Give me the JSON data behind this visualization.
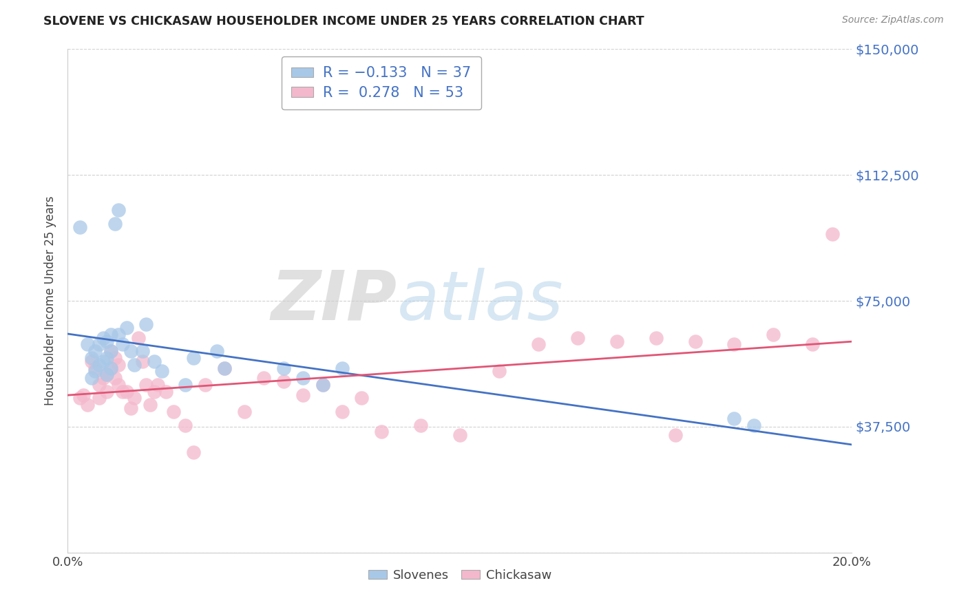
{
  "title": "SLOVENE VS CHICKASAW HOUSEHOLDER INCOME UNDER 25 YEARS CORRELATION CHART",
  "source": "Source: ZipAtlas.com",
  "ylabel": "Householder Income Under 25 years",
  "xlim": [
    0.0,
    0.2
  ],
  "ylim": [
    0,
    150000
  ],
  "yticks": [
    0,
    37500,
    75000,
    112500,
    150000
  ],
  "ytick_labels": [
    "",
    "$37,500",
    "$75,000",
    "$112,500",
    "$150,000"
  ],
  "legend_slovene_r": "-0.133",
  "legend_slovene_n": "37",
  "legend_chickasaw_r": "0.278",
  "legend_chickasaw_n": "53",
  "legend_label_slovene": "Slovenes",
  "legend_label_chickasaw": "Chickasaw",
  "slovene_color": "#a8c8e8",
  "chickasaw_color": "#f4b8cc",
  "trend_slovene_color": "#4472c4",
  "trend_chickasaw_color": "#e05575",
  "watermark_zip": "ZIP",
  "watermark_atlas": "atlas",
  "slovene_x": [
    0.003,
    0.005,
    0.006,
    0.006,
    0.007,
    0.007,
    0.008,
    0.008,
    0.009,
    0.009,
    0.01,
    0.01,
    0.01,
    0.011,
    0.011,
    0.011,
    0.012,
    0.013,
    0.013,
    0.014,
    0.015,
    0.016,
    0.017,
    0.019,
    0.02,
    0.022,
    0.024,
    0.03,
    0.032,
    0.038,
    0.04,
    0.055,
    0.06,
    0.065,
    0.07,
    0.17,
    0.175
  ],
  "slovene_y": [
    97000,
    62000,
    58000,
    52000,
    60000,
    54000,
    62000,
    56000,
    64000,
    57000,
    63000,
    58000,
    53000,
    65000,
    60000,
    55000,
    98000,
    102000,
    65000,
    62000,
    67000,
    60000,
    56000,
    60000,
    68000,
    57000,
    54000,
    50000,
    58000,
    60000,
    55000,
    55000,
    52000,
    50000,
    55000,
    40000,
    38000
  ],
  "chickasaw_x": [
    0.003,
    0.004,
    0.005,
    0.006,
    0.007,
    0.008,
    0.008,
    0.009,
    0.01,
    0.01,
    0.011,
    0.011,
    0.012,
    0.012,
    0.013,
    0.013,
    0.014,
    0.015,
    0.016,
    0.017,
    0.018,
    0.019,
    0.02,
    0.021,
    0.022,
    0.023,
    0.025,
    0.027,
    0.03,
    0.032,
    0.035,
    0.04,
    0.045,
    0.05,
    0.055,
    0.06,
    0.065,
    0.07,
    0.075,
    0.08,
    0.09,
    0.1,
    0.11,
    0.12,
    0.13,
    0.14,
    0.15,
    0.155,
    0.16,
    0.17,
    0.18,
    0.19,
    0.195
  ],
  "chickasaw_y": [
    46000,
    47000,
    44000,
    57000,
    55000,
    50000,
    46000,
    52000,
    53000,
    48000,
    60000,
    55000,
    58000,
    52000,
    56000,
    50000,
    48000,
    48000,
    43000,
    46000,
    64000,
    57000,
    50000,
    44000,
    48000,
    50000,
    48000,
    42000,
    38000,
    30000,
    50000,
    55000,
    42000,
    52000,
    51000,
    47000,
    50000,
    42000,
    46000,
    36000,
    38000,
    35000,
    54000,
    62000,
    64000,
    63000,
    64000,
    35000,
    63000,
    62000,
    65000,
    62000,
    95000
  ]
}
